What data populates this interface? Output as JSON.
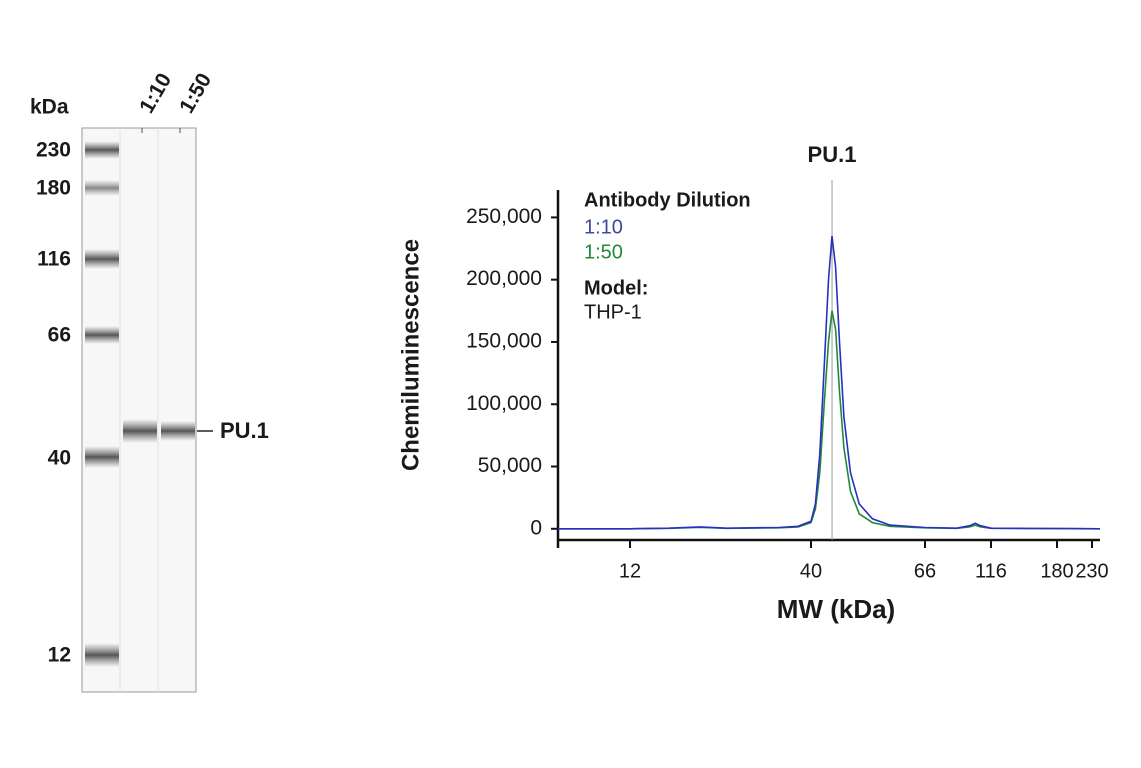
{
  "gel": {
    "unit": "kDa",
    "lanes": [
      "1:10",
      "1:50"
    ],
    "markers": [
      "230",
      "180",
      "116",
      "66",
      "40",
      "12"
    ],
    "band_label": "PU.1"
  },
  "chart_data": {
    "type": "line",
    "title": "PU.1",
    "x_label": "MW (kDa)",
    "y_label": "Chemiluminescence",
    "legend_title": "Antibody Dilution",
    "model_label": "Model:",
    "model": "THP-1",
    "marker_x": 44.8,
    "x": [
      1,
      12,
      18,
      22.8,
      27,
      35,
      38,
      40,
      41,
      42,
      43,
      44,
      44.8,
      45.6,
      46.5,
      47.5,
      49,
      51,
      54,
      58,
      66,
      90,
      100,
      104,
      108,
      116,
      150,
      200,
      241
    ],
    "series": [
      {
        "name": "1:10",
        "color": "#2a2fc4",
        "label_color": "#3b4a9b",
        "values": [
          0,
          0,
          500,
          1500,
          500,
          1000,
          2000,
          6000,
          20000,
          60000,
          130000,
          200000,
          235000,
          210000,
          150000,
          90000,
          45000,
          20000,
          8000,
          3000,
          1000,
          500,
          2500,
          4500,
          2500,
          500,
          300,
          200,
          0
        ]
      },
      {
        "name": "1:50",
        "color": "#1f8a3a",
        "label_color": "#1f8a3a",
        "values": [
          0,
          0,
          400,
          1200,
          400,
          800,
          1500,
          5000,
          16000,
          45000,
          100000,
          150000,
          175000,
          160000,
          110000,
          65000,
          30000,
          12000,
          5000,
          2000,
          800,
          400,
          1500,
          3000,
          1500,
          400,
          200,
          100,
          0
        ]
      }
    ],
    "xlim": [
      1,
      241
    ],
    "xticks": [
      12,
      40,
      66,
      116,
      180,
      230
    ],
    "ylim": [
      -9000,
      272000
    ],
    "yticks": [
      0,
      {
        "value": 50000,
        "label": "50,000"
      },
      {
        "value": 100000,
        "label": "100,000"
      },
      {
        "value": 150000,
        "label": "150,000"
      },
      {
        "value": 200000,
        "label": "200,000"
      },
      {
        "value": 250000,
        "label": "250,000"
      }
    ]
  }
}
